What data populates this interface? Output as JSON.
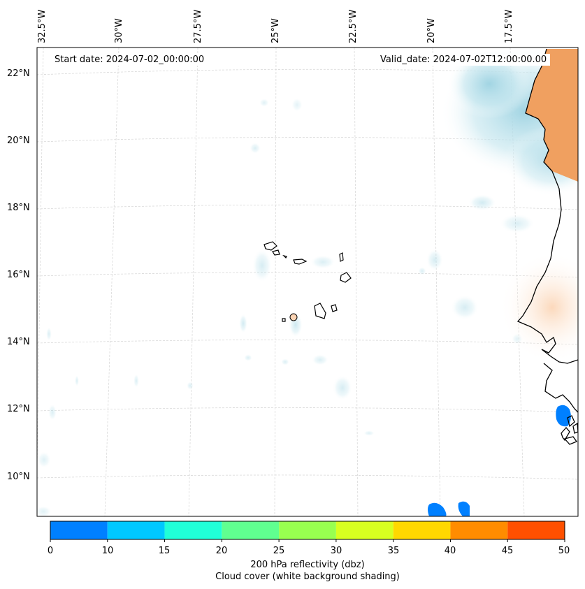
{
  "header": {
    "start_date": "Start date: 2024-07-02_00:00:00",
    "valid_date": "Valid_date: 2024-07-02T12:00:00.00"
  },
  "axes": {
    "lon_labels": [
      "32.5°W",
      "30°W",
      "27.5°W",
      "25°W",
      "22.5°W",
      "20°W",
      "17.5°W"
    ],
    "lat_labels": [
      "22°N",
      "20°N",
      "18°N",
      "16°N",
      "14°N",
      "12°N",
      "10°N"
    ]
  },
  "colorbar": {
    "ticks": [
      "0",
      "10",
      "15",
      "20",
      "25",
      "30",
      "35",
      "40",
      "45",
      "50"
    ],
    "colors": [
      "#0080ff",
      "#00c8ff",
      "#20ffd8",
      "#60ff90",
      "#98ff50",
      "#d8ff20",
      "#ffd800",
      "#ff8c00",
      "#ff5000"
    ],
    "title_line1": "200 hPa reflectivity (dbz)",
    "title_line2": "Cloud cover (white background shading)"
  },
  "colors": {
    "cloud_shading": "#a8d8e6",
    "land_orange": "#f0a060",
    "light_orange": "#fde0c8",
    "coastline": "#000000",
    "gridline": "#cccccc"
  }
}
